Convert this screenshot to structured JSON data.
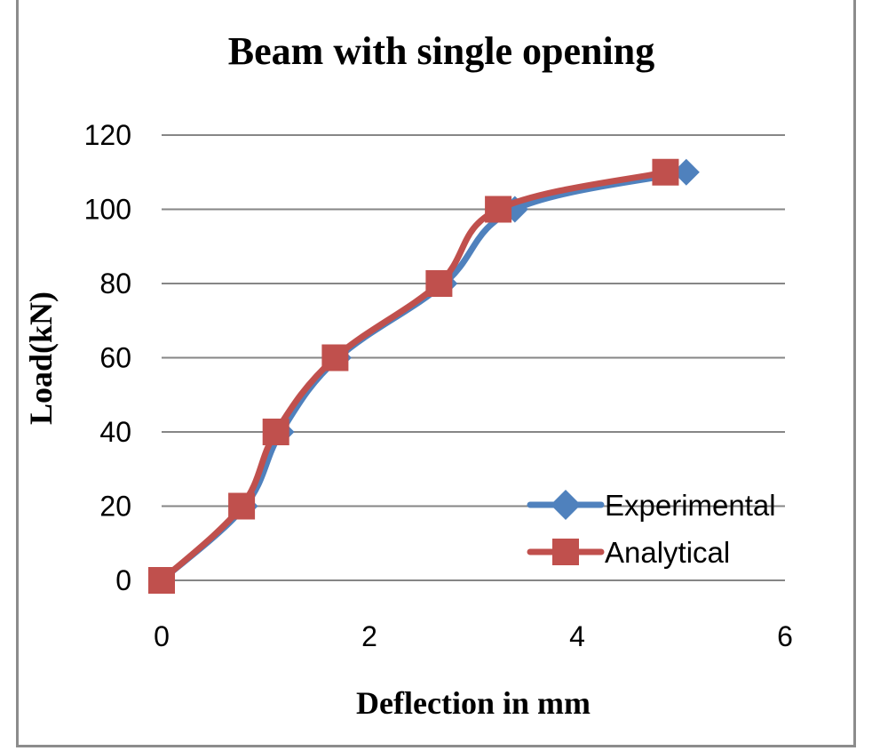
{
  "chart_data": {
    "type": "line",
    "title": "Beam with single opening",
    "xlabel": "Deflection in mm",
    "ylabel": "Load(kN)",
    "xlim": [
      0,
      6
    ],
    "ylim": [
      0,
      120
    ],
    "x_ticks": [
      "0",
      "2",
      "4",
      "6"
    ],
    "y_ticks": [
      "0",
      "20",
      "40",
      "60",
      "80",
      "100",
      "120"
    ],
    "grid": "horizontal",
    "legend_position": "bottom-right",
    "series": [
      {
        "name": "Experimental",
        "color": "#4f81bd",
        "marker": "diamond",
        "points": [
          {
            "x": 0,
            "y": 0
          },
          {
            "x": 0.8,
            "y": 20
          },
          {
            "x": 1.15,
            "y": 40
          },
          {
            "x": 1.7,
            "y": 60
          },
          {
            "x": 2.72,
            "y": 80
          },
          {
            "x": 3.4,
            "y": 100
          },
          {
            "x": 5.05,
            "y": 110
          }
        ]
      },
      {
        "name": "Analytical",
        "color": "#c0504d",
        "marker": "square",
        "points": [
          {
            "x": 0,
            "y": 0
          },
          {
            "x": 0.77,
            "y": 20
          },
          {
            "x": 1.1,
            "y": 40
          },
          {
            "x": 1.67,
            "y": 60
          },
          {
            "x": 2.67,
            "y": 80
          },
          {
            "x": 3.24,
            "y": 100
          },
          {
            "x": 4.85,
            "y": 110
          }
        ]
      }
    ]
  }
}
